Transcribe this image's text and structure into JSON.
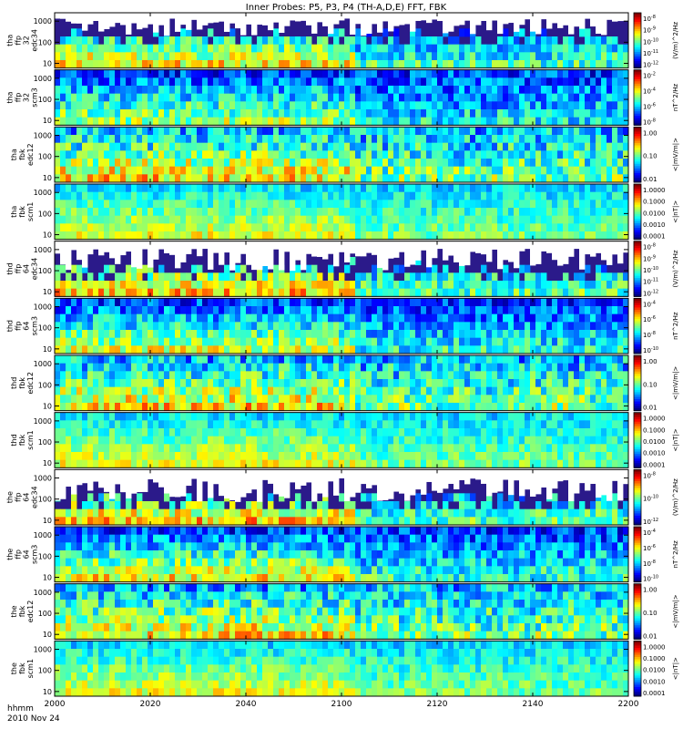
{
  "title": "Inner Probes: P5, P3, P4 (TH-A,D,E) FFT, FBK",
  "chart_data": {
    "type": "heatmap",
    "title": "Inner Probes: P5, P3, P4 (TH-A,D,E) FFT, FBK",
    "x_axis": {
      "label_line1": "hhmm",
      "label_line2": "2010 Nov 24",
      "range": [
        "2000",
        "2200"
      ],
      "ticks": [
        "2000",
        "2020",
        "2040",
        "2100",
        "2120",
        "2140",
        "2200"
      ]
    },
    "panels": [
      {
        "probe": "tha",
        "ylabel": [
          "tha",
          "ffp",
          "32",
          "edc34"
        ],
        "yticks": [
          "10",
          "100",
          "1000"
        ],
        "cbar_ticks": [
          "10^-8",
          "10^-9",
          "10^-10",
          "10^-11",
          "10^-12"
        ],
        "cbar_label": "(V/m)^2/Hz",
        "texture": "ffp_e",
        "white_top": 0.35,
        "intensity": 0.45
      },
      {
        "probe": "tha",
        "ylabel": [
          "tha",
          "ffp",
          "32",
          "scm3"
        ],
        "yticks": [
          "10",
          "100",
          "1000"
        ],
        "cbar_ticks": [
          "10^-2",
          "10^-4",
          "10^-6",
          "10^-8"
        ],
        "cbar_label": "nT^2/Hz",
        "texture": "ffp_b",
        "white_top": 0.0,
        "intensity": 0.35
      },
      {
        "probe": "tha",
        "ylabel": [
          "tha",
          "fbk",
          "edc12"
        ],
        "yticks": [
          "10",
          "100",
          "1000"
        ],
        "cbar_ticks": [
          "1.00",
          "0.10",
          "0.01"
        ],
        "cbar_label": "<|mV/m|>",
        "texture": "fbk_e",
        "white_top": 0.0,
        "intensity": 0.55
      },
      {
        "probe": "tha",
        "ylabel": [
          "tha",
          "fbk",
          "scm1"
        ],
        "yticks": [
          "10",
          "100",
          "1000"
        ],
        "cbar_ticks": [
          "1.0000",
          "0.1000",
          "0.0100",
          "0.0010",
          "0.0001"
        ],
        "cbar_label": "<|nT|>",
        "texture": "fbk_b",
        "white_top": 0.0,
        "intensity": 0.5
      },
      {
        "probe": "thd",
        "ylabel": [
          "thd",
          "ffp",
          "64",
          "edc34"
        ],
        "yticks": [
          "10",
          "100",
          "1000"
        ],
        "cbar_ticks": [
          "10^-8",
          "10^-9",
          "10^-10",
          "10^-11",
          "10^-12"
        ],
        "cbar_label": "(V/m)^2/Hz",
        "texture": "ffp_e",
        "white_top": 0.45,
        "intensity": 0.5
      },
      {
        "probe": "thd",
        "ylabel": [
          "thd",
          "ffp",
          "64",
          "scm3"
        ],
        "yticks": [
          "10",
          "100",
          "1000"
        ],
        "cbar_ticks": [
          "10^-4",
          "10^-6",
          "10^-8",
          "10^-10"
        ],
        "cbar_label": "nT^2/Hz",
        "texture": "ffp_b",
        "white_top": 0.0,
        "intensity": 0.4
      },
      {
        "probe": "thd",
        "ylabel": [
          "thd",
          "fbk",
          "edc12"
        ],
        "yticks": [
          "10",
          "100",
          "1000"
        ],
        "cbar_ticks": [
          "1.00",
          "0.10",
          "0.01"
        ],
        "cbar_label": "<|mV/m|>",
        "texture": "fbk_e",
        "white_top": 0.0,
        "intensity": 0.6
      },
      {
        "probe": "thd",
        "ylabel": [
          "thd",
          "fbk",
          "scm1"
        ],
        "yticks": [
          "10",
          "100",
          "1000"
        ],
        "cbar_ticks": [
          "1.0000",
          "0.1000",
          "0.0100",
          "0.0010",
          "0.0001"
        ],
        "cbar_label": "<|nT|>",
        "texture": "fbk_b",
        "white_top": 0.0,
        "intensity": 0.45
      },
      {
        "probe": "the",
        "ylabel": [
          "the",
          "ffp",
          "64",
          "edc34"
        ],
        "yticks": [
          "10",
          "100",
          "1000"
        ],
        "cbar_ticks": [
          "10^-8",
          "10^-10",
          "10^-12"
        ],
        "cbar_label": "(V/m)^2/Hz",
        "texture": "ffp_e",
        "white_top": 0.5,
        "intensity": 0.5
      },
      {
        "probe": "the",
        "ylabel": [
          "the",
          "ffp",
          "64",
          "scm3"
        ],
        "yticks": [
          "10",
          "100",
          "1000"
        ],
        "cbar_ticks": [
          "10^-4",
          "10^-6",
          "10^-8",
          "10^-10"
        ],
        "cbar_label": "nT^2/Hz",
        "texture": "ffp_b",
        "white_top": 0.0,
        "intensity": 0.45
      },
      {
        "probe": "the",
        "ylabel": [
          "the",
          "fbk",
          "edc12"
        ],
        "yticks": [
          "10",
          "100",
          "1000"
        ],
        "cbar_ticks": [
          "1.00",
          "0.10",
          "0.01"
        ],
        "cbar_label": "<|mV/m|>",
        "texture": "fbk_e",
        "white_top": 0.0,
        "intensity": 0.6
      },
      {
        "probe": "the",
        "ylabel": [
          "the",
          "fbk",
          "scm1"
        ],
        "yticks": [
          "10",
          "100",
          "1000"
        ],
        "cbar_ticks": [
          "1.0000",
          "0.1000",
          "0.0100",
          "0.0010",
          "0.0001"
        ],
        "cbar_label": "<|nT|>",
        "texture": "fbk_b",
        "white_top": 0.0,
        "intensity": 0.5
      }
    ]
  }
}
